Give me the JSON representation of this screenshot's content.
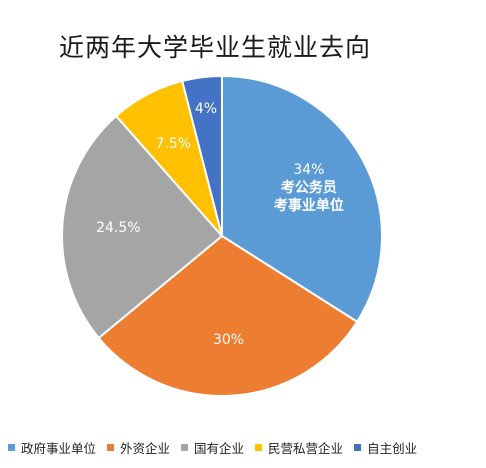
{
  "chart_data": {
    "type": "pie",
    "title": "近两年大学毕业生就业去向",
    "slices": [
      {
        "name": "政府事业单位",
        "value": 34,
        "label": "34%",
        "sublabel": [
          "考公务员",
          "考事业单位"
        ],
        "color": "#5b9bd5"
      },
      {
        "name": "外资企业",
        "value": 30,
        "label": "30%",
        "color": "#ed7d31"
      },
      {
        "name": "国有企业",
        "value": 24.5,
        "label": "24.5%",
        "color": "#a5a5a5"
      },
      {
        "name": "民营私营企业",
        "value": 7.5,
        "label": "7.5%",
        "color": "#ffc000"
      },
      {
        "name": "自主创业",
        "value": 4,
        "label": "4%",
        "color": "#4472c4"
      }
    ],
    "legend_position": "bottom"
  }
}
